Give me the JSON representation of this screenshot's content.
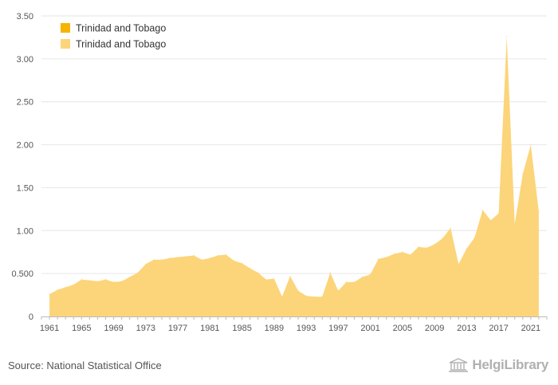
{
  "chart_data": {
    "type": "area",
    "y_ticks": [
      "0",
      "0.500",
      "1.00",
      "1.50",
      "2.00",
      "2.50",
      "3.00",
      "3.50"
    ],
    "y_tick_values": [
      0,
      0.5,
      1.0,
      1.5,
      2.0,
      2.5,
      3.0,
      3.5
    ],
    "ylim": [
      0,
      3.5
    ],
    "x_ticks": [
      "1961",
      "1965",
      "1969",
      "1973",
      "1977",
      "1981",
      "1985",
      "1989",
      "1993",
      "1997",
      "2001",
      "2005",
      "2009",
      "2013",
      "2017",
      "2021"
    ],
    "xlim": [
      1960,
      2023
    ],
    "grid": true,
    "legend_position": "top-left",
    "legend": [
      {
        "label": "Trinidad and Tobago",
        "color": "#f5b400"
      },
      {
        "label": "Trinidad and Tobago",
        "color": "#fcd57a"
      }
    ],
    "series": [
      {
        "name": "Trinidad and Tobago",
        "color": "#fcd57a",
        "x": [
          1961,
          1962,
          1963,
          1964,
          1965,
          1966,
          1967,
          1968,
          1969,
          1970,
          1971,
          1972,
          1973,
          1974,
          1975,
          1976,
          1977,
          1978,
          1979,
          1980,
          1981,
          1982,
          1983,
          1984,
          1985,
          1986,
          1987,
          1988,
          1989,
          1990,
          1991,
          1992,
          1993,
          1994,
          1995,
          1996,
          1997,
          1998,
          1999,
          2000,
          2001,
          2002,
          2003,
          2004,
          2005,
          2006,
          2007,
          2008,
          2009,
          2010,
          2011,
          2012,
          2013,
          2014,
          2015,
          2016,
          2017,
          2018,
          2019,
          2020,
          2021,
          2022
        ],
        "values": [
          0.26,
          0.31,
          0.34,
          0.37,
          0.43,
          0.42,
          0.41,
          0.43,
          0.4,
          0.41,
          0.46,
          0.51,
          0.61,
          0.66,
          0.66,
          0.68,
          0.69,
          0.7,
          0.71,
          0.66,
          0.68,
          0.71,
          0.72,
          0.65,
          0.62,
          0.56,
          0.51,
          0.43,
          0.44,
          0.23,
          0.47,
          0.3,
          0.24,
          0.23,
          0.23,
          0.51,
          0.3,
          0.4,
          0.4,
          0.46,
          0.49,
          0.67,
          0.69,
          0.73,
          0.75,
          0.72,
          0.81,
          0.8,
          0.84,
          0.91,
          1.03,
          0.61,
          0.79,
          0.92,
          1.24,
          1.12,
          1.2,
          3.26,
          1.08,
          1.66,
          2.0,
          1.22
        ]
      }
    ]
  },
  "footer": {
    "source": "Source: National Statistical Office",
    "brand_name": "HelgiLibrary"
  }
}
